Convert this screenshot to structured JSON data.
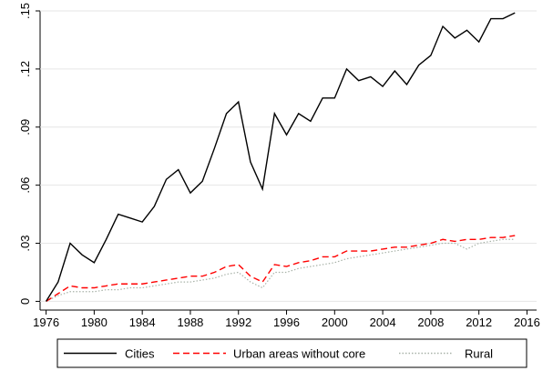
{
  "chart_data": {
    "type": "line",
    "x": [
      1976,
      1977,
      1978,
      1979,
      1980,
      1981,
      1982,
      1983,
      1984,
      1985,
      1986,
      1987,
      1988,
      1989,
      1990,
      1991,
      1992,
      1993,
      1994,
      1995,
      1996,
      1997,
      1998,
      1999,
      2000,
      2001,
      2002,
      2003,
      2004,
      2005,
      2006,
      2007,
      2008,
      2009,
      2010,
      2011,
      2012,
      2013,
      2014,
      2015
    ],
    "series": [
      {
        "name": "Cities",
        "color": "#000000",
        "dash": "solid",
        "values": [
          0,
          0.01,
          0.03,
          0.024,
          0.02,
          0.032,
          0.045,
          0.043,
          0.041,
          0.049,
          0.063,
          0.068,
          0.056,
          0.062,
          0.079,
          0.097,
          0.103,
          0.072,
          0.058,
          0.097,
          0.086,
          0.097,
          0.093,
          0.105,
          0.105,
          0.12,
          0.114,
          0.116,
          0.111,
          0.119,
          0.112,
          0.122,
          0.127,
          0.142,
          0.136,
          0.14,
          0.134,
          0.146,
          0.146,
          0.149
        ]
      },
      {
        "name": "Urban areas without core",
        "color": "#ff0000",
        "dash": "dashed",
        "values": [
          0,
          0.004,
          0.008,
          0.007,
          0.007,
          0.008,
          0.009,
          0.009,
          0.009,
          0.01,
          0.011,
          0.012,
          0.013,
          0.013,
          0.015,
          0.018,
          0.019,
          0.013,
          0.01,
          0.019,
          0.018,
          0.02,
          0.021,
          0.023,
          0.023,
          0.026,
          0.026,
          0.026,
          0.027,
          0.028,
          0.028,
          0.029,
          0.03,
          0.032,
          0.031,
          0.032,
          0.032,
          0.033,
          0.033,
          0.034
        ]
      },
      {
        "name": "Rural",
        "color": "#a9b3a9",
        "dash": "dotted",
        "values": [
          0,
          0.003,
          0.005,
          0.005,
          0.005,
          0.006,
          0.006,
          0.007,
          0.007,
          0.008,
          0.009,
          0.01,
          0.01,
          0.011,
          0.012,
          0.014,
          0.015,
          0.01,
          0.007,
          0.015,
          0.015,
          0.017,
          0.018,
          0.019,
          0.02,
          0.022,
          0.023,
          0.024,
          0.025,
          0.026,
          0.027,
          0.028,
          0.029,
          0.03,
          0.03,
          0.027,
          0.03,
          0.031,
          0.032,
          0.032
        ]
      }
    ],
    "xlim": [
      1975.5,
      2016.8
    ],
    "xticks": [
      1976,
      1980,
      1984,
      1988,
      1992,
      1996,
      2000,
      2004,
      2008,
      2012,
      2016
    ],
    "ylim": [
      -0.0045,
      0.15
    ],
    "yticks": [
      0,
      {
        "value": 0.03,
        "label": ".03"
      },
      {
        "value": 0.06,
        "label": ".06"
      },
      {
        "value": 0.09,
        "label": ".09"
      },
      {
        "value": 0.12,
        "label": ".12"
      },
      {
        "value": 0.15,
        "label": ".15"
      }
    ],
    "grid": true,
    "legend": "bottom"
  }
}
